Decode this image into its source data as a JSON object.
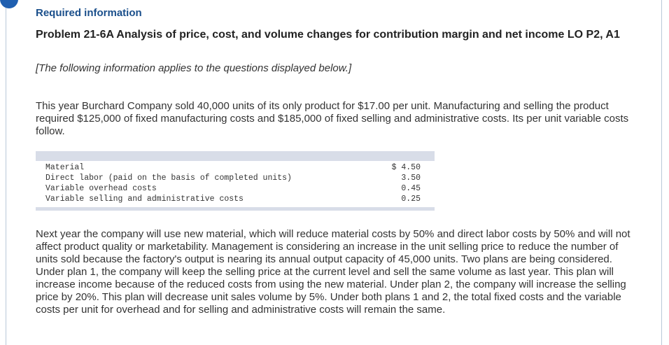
{
  "header": {
    "required_label": "Required information",
    "problem_title": "Problem 21-6A Analysis of price, cost, and volume changes for contribution margin and net income LO P2, A1",
    "note": "[The following information applies to the questions displayed below.]"
  },
  "intro_paragraph": "This year Burchard Company sold 40,000 units of its only product for $17.00 per unit. Manufacturing and selling the product required $125,000 of fixed manufacturing costs and $185,000 of fixed selling and administrative costs. Its per unit variable costs follow.",
  "cost_table": {
    "rows": [
      {
        "label": "Material",
        "value": "$ 4.50"
      },
      {
        "label": "Direct labor (paid on the basis of completed units)",
        "value": "3.50"
      },
      {
        "label": "Variable overhead costs",
        "value": "0.45"
      },
      {
        "label": "Variable selling and administrative costs",
        "value": "0.25"
      }
    ]
  },
  "plans_paragraph": "Next year the company will use new material, which will reduce material costs by 50% and direct labor costs by 50% and will not affect product quality or marketability. Management is considering an increase in the unit selling price to reduce the number of units sold because the factory's output is nearing its annual output capacity of 45,000 units. Two plans are being considered. Under plan 1, the company will keep the selling price at the current level and sell the same volume as last year. This plan will increase income because of the reduced costs from using the new material. Under plan 2, the company will increase the selling price by 20%. This plan will decrease unit sales volume by 5%. Under both plans 1 and 2, the total fixed costs and the variable costs per unit for overhead and for selling and administrative costs will remain the same."
}
